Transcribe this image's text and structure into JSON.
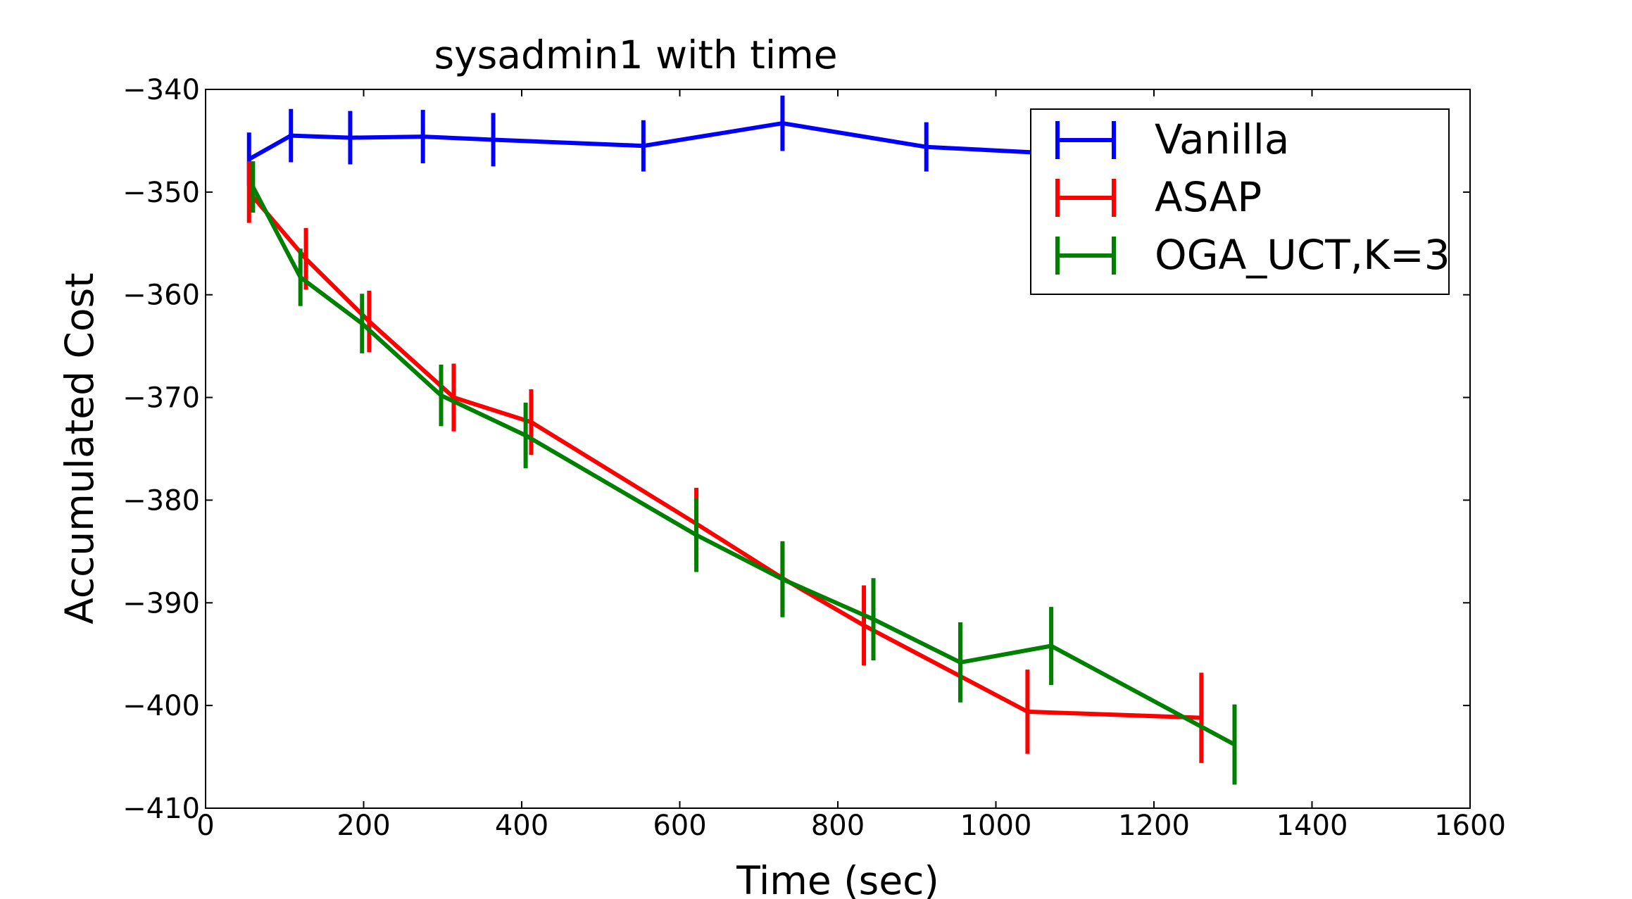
{
  "chart_data": {
    "type": "line",
    "title": "sysadmin1 with time",
    "xlabel": "Time (sec)",
    "ylabel": "Accumulated Cost",
    "xlim": [
      0,
      1600
    ],
    "ylim": [
      -410,
      -340
    ],
    "xticks": [
      0,
      200,
      400,
      600,
      800,
      1000,
      1200,
      1400,
      1600
    ],
    "yticks": [
      -340,
      -350,
      -360,
      -370,
      -380,
      -390,
      -400,
      -410
    ],
    "xtick_labels": [
      "0",
      "200",
      "400",
      "600",
      "800",
      "1000",
      "1200",
      "1400",
      "1600"
    ],
    "ytick_labels": [
      "−340",
      "−350",
      "−360",
      "−370",
      "−380",
      "−390",
      "−400",
      "−410"
    ],
    "grid": false,
    "legend_position": "top-right",
    "series": [
      {
        "name": "Vanilla",
        "color": "#0000ff",
        "x": [
          55,
          108,
          183,
          275,
          364,
          554,
          730,
          912,
          1090
        ],
        "y": [
          -346.8,
          -344.5,
          -344.7,
          -344.6,
          -344.9,
          -345.5,
          -343.3,
          -345.6,
          -346.3
        ],
        "err": [
          2.6,
          2.6,
          2.6,
          2.6,
          2.6,
          2.5,
          2.7,
          2.4,
          2.4
        ]
      },
      {
        "name": "ASAP",
        "color": "#ff0000",
        "x": [
          55,
          127,
          207,
          314,
          412,
          621,
          730,
          833,
          1040,
          1260
        ],
        "y": [
          -350.0,
          -356.5,
          -362.6,
          -370.0,
          -372.4,
          -382.3,
          -387.6,
          -392.2,
          -400.6,
          -401.2
        ],
        "err": [
          3.0,
          3.0,
          3.0,
          3.3,
          3.2,
          3.5,
          3.5,
          3.9,
          4.1,
          4.4
        ]
      },
      {
        "name": "OGA_UCT,K=3",
        "color": "#008000",
        "x": [
          60,
          120,
          198,
          298,
          405,
          621,
          730,
          845,
          955,
          1070,
          1302
        ],
        "y": [
          -349.5,
          -358.3,
          -362.8,
          -369.8,
          -373.7,
          -383.4,
          -387.7,
          -391.6,
          -395.8,
          -394.2,
          -403.8
        ],
        "err": [
          2.5,
          2.8,
          2.9,
          3.0,
          3.2,
          3.6,
          3.7,
          4.0,
          3.9,
          3.8,
          3.9
        ]
      }
    ]
  }
}
